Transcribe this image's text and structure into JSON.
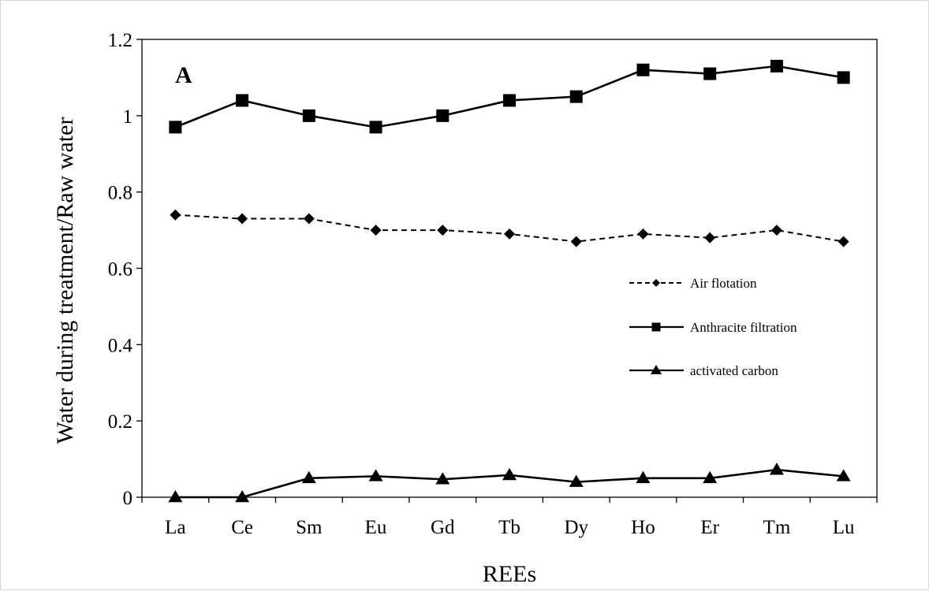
{
  "chart_data": {
    "type": "line",
    "panel_label": "A",
    "xlabel": "REEs",
    "ylabel": "Water during treatment/Raw water",
    "categories": [
      "La",
      "Ce",
      "Sm",
      "Eu",
      "Gd",
      "Tb",
      "Dy",
      "Ho",
      "Er",
      "Tm",
      "Lu"
    ],
    "ylim": [
      0,
      1.2
    ],
    "yticks": [
      "0",
      "0.2",
      "0.4",
      "0.6",
      "0.8",
      "1",
      "1.2"
    ],
    "grid": false,
    "legend_position": "right",
    "series": [
      {
        "name": "Air flotation",
        "marker": "diamond",
        "dashed": true,
        "values": [
          0.74,
          0.73,
          0.73,
          0.7,
          0.7,
          0.69,
          0.67,
          0.69,
          0.68,
          0.7,
          0.67
        ]
      },
      {
        "name": "Anthracite filtration",
        "marker": "square",
        "dashed": false,
        "values": [
          0.97,
          1.04,
          1.0,
          0.97,
          1.0,
          1.04,
          1.05,
          1.12,
          1.11,
          1.13,
          1.1
        ]
      },
      {
        "name": "activated carbon",
        "marker": "triangle",
        "dashed": false,
        "values": [
          0.0,
          0.0,
          0.05,
          0.055,
          0.047,
          0.058,
          0.04,
          0.05,
          0.05,
          0.072,
          0.055
        ]
      }
    ],
    "colors": {
      "line": "#000000",
      "background": "#ffffff"
    }
  }
}
